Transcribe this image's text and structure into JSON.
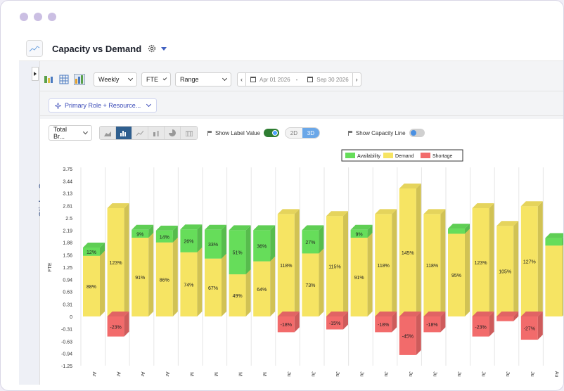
{
  "app": {
    "title": "Capacity vs Demand"
  },
  "sidebar": {
    "label": "Sticker Summary"
  },
  "toolbar": {
    "period": "Weekly",
    "unit": "FTE",
    "range_mode": "Range",
    "start_date": "Apr 01 2026",
    "date_separator": "-",
    "end_date": "Sep 30 2026"
  },
  "filter": {
    "label": "Primary Role + Resource..."
  },
  "chart_controls": {
    "aggregate": "Total Br...",
    "show_label_value": "Show Label Value",
    "mode_2d": "2D",
    "mode_3d": "3D",
    "show_capacity_line": "Show Capacity Line"
  },
  "chart_data": {
    "type": "bar",
    "stacked": true,
    "style": "3d",
    "ylabel": "FTE",
    "ylim": [
      -1.25,
      3.75
    ],
    "yticks": [
      "3.75",
      "3.44",
      "3.13",
      "2.81",
      "2.5",
      "2.19",
      "1.88",
      "1.56",
      "1.25",
      "0.94",
      "0.63",
      "0.31",
      "0",
      "-0.31",
      "-0.63",
      "-0.94",
      "-1.25"
    ],
    "categories": [
      "Ar",
      "Ar",
      "Ar",
      "Ar",
      "M",
      "M",
      "M",
      "M",
      "Ju",
      "Ju",
      "Ju",
      "Ju",
      "Ju",
      "Ju",
      "Ju",
      "Ju",
      "Ju",
      "Ju",
      "Ju",
      "Au"
    ],
    "legend": [
      "Availability",
      "Demand",
      "Shortage"
    ],
    "legend_position": "top-center",
    "colors": {
      "availability": "#66dd5a",
      "demand": "#f6e463",
      "shortage": "#f26b6b"
    },
    "series": [
      {
        "name": "Demand",
        "values": [
          1.54,
          2.75,
          2.0,
          1.88,
          1.63,
          1.47,
          1.07,
          1.4,
          2.6,
          1.6,
          2.55,
          2.0,
          2.6,
          3.25,
          2.6,
          2.1,
          2.75,
          2.3,
          2.8,
          1.8
        ],
        "labels": [
          "88%",
          "123%",
          "91%",
          "86%",
          "74%",
          "67%",
          "49%",
          "64%",
          "118%",
          "73%",
          "115%",
          "91%",
          "118%",
          "145%",
          "118%",
          "95%",
          "123%",
          "105%",
          "127%",
          ""
        ]
      },
      {
        "name": "Availability",
        "values": [
          0.21,
          0,
          0.2,
          0.3,
          0.58,
          0.73,
          1.12,
          0.79,
          0,
          0.59,
          0,
          0.2,
          0,
          0,
          0,
          0.13,
          0,
          0,
          0,
          0.19
        ],
        "labels": [
          "12%",
          "",
          "9%",
          "14%",
          "26%",
          "33%",
          "51%",
          "36%",
          "",
          "27%",
          "",
          "9%",
          "",
          "",
          "",
          "",
          "",
          "",
          "",
          ""
        ]
      },
      {
        "name": "Shortage",
        "values": [
          0,
          -0.51,
          0,
          0,
          0,
          0,
          0,
          0,
          -0.4,
          0,
          -0.33,
          0,
          -0.4,
          -0.98,
          -0.4,
          0,
          -0.51,
          -0.12,
          -0.59,
          0
        ],
        "labels": [
          "",
          "-23%",
          "",
          "",
          "",
          "",
          "",
          "",
          "-18%",
          "",
          "-15%",
          "",
          "-18%",
          "-45%",
          "-18%",
          "",
          "-23%",
          "",
          "-27%",
          ""
        ]
      }
    ]
  }
}
